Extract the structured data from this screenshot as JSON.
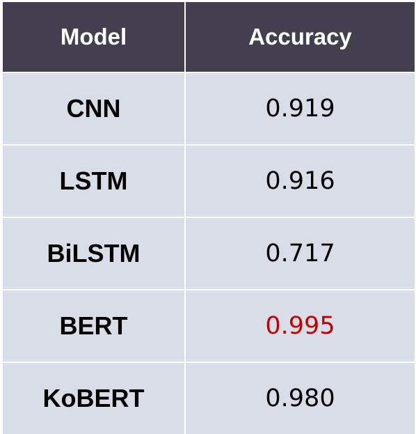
{
  "table": {
    "headers": [
      "Model",
      "Accuracy"
    ],
    "rows": [
      {
        "model": "CNN",
        "accuracy": "0.919"
      },
      {
        "model": "LSTM",
        "accuracy": "0.916"
      },
      {
        "model": "BiLSTM",
        "accuracy": "0.717"
      },
      {
        "model": "BERT",
        "accuracy": "0.995"
      },
      {
        "model": "KoBERT",
        "accuracy": "0.980"
      }
    ],
    "highlight_row": "BERT",
    "colors": {
      "header_bg": "#433f4f",
      "header_text": "#ffffff",
      "row_bg": "#d8dde8",
      "text": "#000000",
      "highlight_text": "#c00000"
    }
  }
}
